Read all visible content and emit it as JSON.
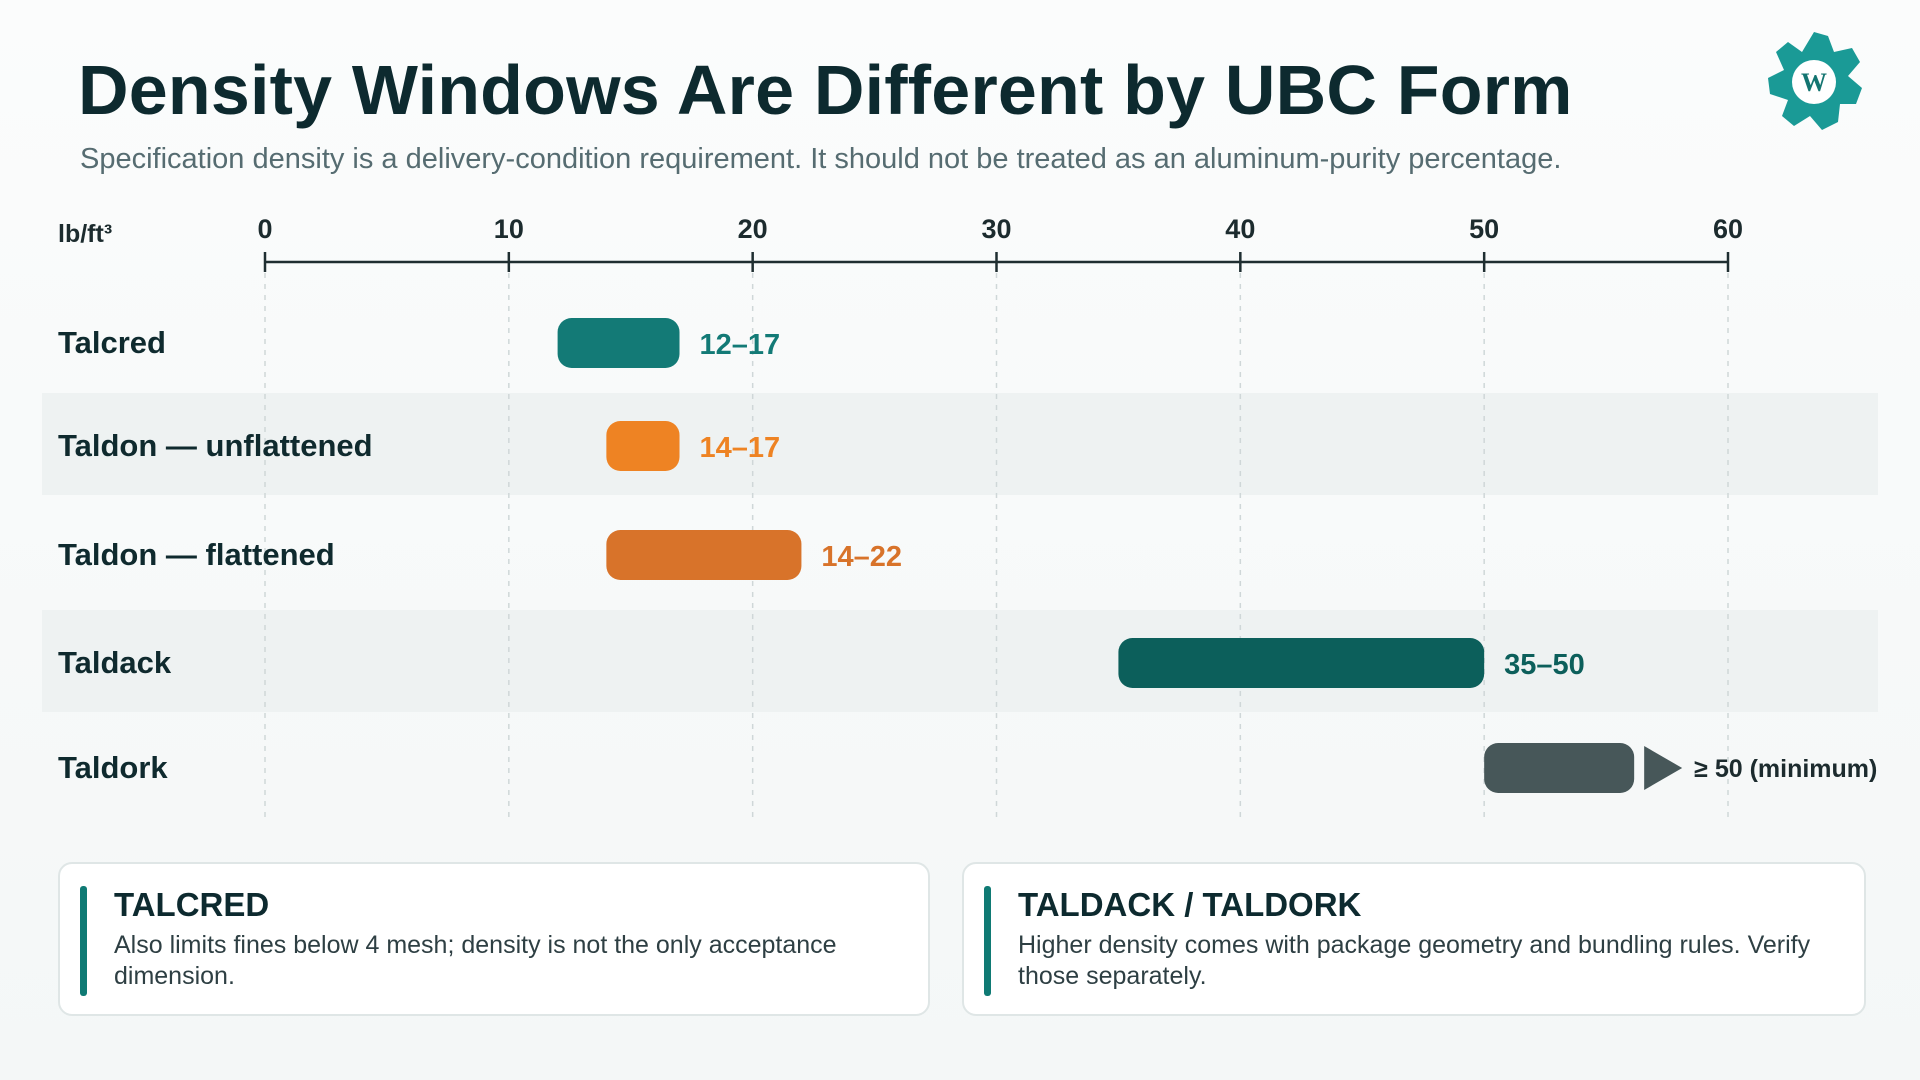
{
  "header": {
    "title": "Density Windows Are Different by UBC Form",
    "subtitle": "Specification density is a delivery-condition requirement. It should not be treated as an aluminum-purity percentage."
  },
  "logo": {
    "icon": "gear-w-logo-icon",
    "color": "#1a9a96"
  },
  "chart_data": {
    "type": "bar",
    "orientation": "horizontal-range",
    "unit_label": "lb/ft³",
    "xlim": [
      0,
      60
    ],
    "ticks": [
      0,
      10,
      20,
      30,
      40,
      50,
      60
    ],
    "grid": true,
    "categories": [
      "Talcred",
      "Taldon — unflattened",
      "Taldon — flattened",
      "Taldack",
      "Taldork"
    ],
    "ranges": [
      {
        "category": "Talcred",
        "low": 12,
        "high": 17,
        "label": "12–17",
        "color": "#137a76",
        "open_ended": false
      },
      {
        "category": "Taldon — unflattened",
        "low": 14,
        "high": 17,
        "label": "14–17",
        "color": "#ee8323",
        "open_ended": false
      },
      {
        "category": "Taldon — flattened",
        "low": 14,
        "high": 22,
        "label": "14–22",
        "color": "#d8732a",
        "open_ended": false
      },
      {
        "category": "Taldack",
        "low": 35,
        "high": 50,
        "label": "35–50",
        "color": "#0c5f5b",
        "open_ended": false
      },
      {
        "category": "Taldork",
        "low": 50,
        "high": null,
        "label": "≥ 50 (minimum)",
        "color": "#475759",
        "open_ended": true
      }
    ]
  },
  "notes": [
    {
      "title": "TALCRED",
      "body": "Also limits fines below 4 mesh; density is not the only acceptance dimension."
    },
    {
      "title": "TALDACK / TALDORK",
      "body": "Higher density comes with package geometry and bundling rules. Verify those separately."
    }
  ],
  "colors": {
    "accent": "#0f7a74",
    "axis": "#1f2e31",
    "grid": "#cfd7d8",
    "row_band": "#eef2f2"
  }
}
